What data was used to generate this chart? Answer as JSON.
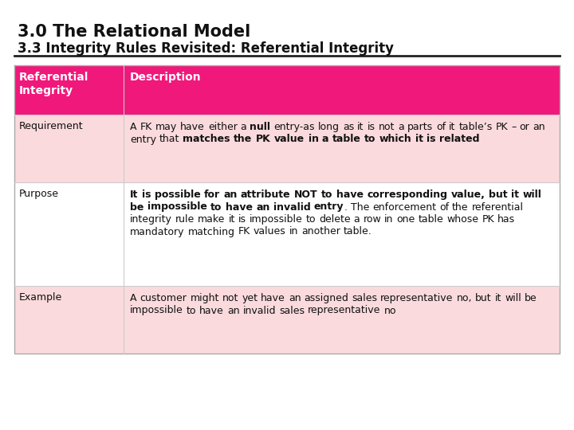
{
  "title_line1": "3.0 The Relational Model",
  "title_line2": "3.3 Integrity Rules Revisited: Referential Integrity",
  "bg_color": "#ffffff",
  "header_bg": "#F0187B",
  "header_text_color": "#ffffff",
  "row_bg_pink": "#FADADD",
  "row_bg_white": "#ffffff",
  "col1_header": "Referential\nIntegrity",
  "col2_header": "Description",
  "rows": [
    {
      "col1": "Requirement",
      "bg": "#FADADD",
      "col2_parts": [
        {
          "text": "A FK may have either a ",
          "bold": false
        },
        {
          "text": "null",
          "bold": true
        },
        {
          "text": " entry-as long as it is not a parts of it table’s PK – or an entry that ",
          "bold": false
        },
        {
          "text": "matches the PK value in a table to which it is related",
          "bold": true
        }
      ]
    },
    {
      "col1": "Purpose",
      "bg": "#ffffff",
      "col2_parts": [
        {
          "text": "It is possible for an attribute NOT to have corresponding value, but it will be impossible to have an invalid entry",
          "bold": true
        },
        {
          "text": ". The enforcement of the referential integrity rule make it is impossible to delete a row in one table whose PK has mandatory matching FK values in another table.",
          "bold": false
        }
      ]
    },
    {
      "col1": "Example",
      "bg": "#FADADD",
      "col2_parts": [
        {
          "text": "A customer might not yet have an assigned sales representative no, but it will be impossible to have an invalid sales representative no",
          "bold": false
        }
      ]
    }
  ],
  "separator_color": "#333333",
  "border_color": "#cccccc"
}
